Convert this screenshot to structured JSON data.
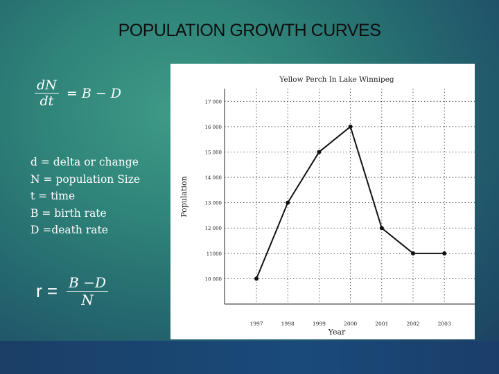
{
  "slide": {
    "title": "POPULATION GROWTH CURVES",
    "equation": {
      "numerator": "dN",
      "denominator": "dt",
      "rhs": "= B − D"
    },
    "definitions": [
      "d = delta or change",
      "N = population Size",
      "t = time",
      "B = birth rate",
      "D =death rate"
    ],
    "rate_formula": {
      "lhs": "r =",
      "numerator": "B −D",
      "denominator": "N"
    }
  },
  "chart_data": {
    "type": "line",
    "title": "Yellow Perch In Lake Winnipeg",
    "xlabel": "Year",
    "ylabel": "Population",
    "categories": [
      "1997",
      "1998",
      "1999",
      "2000",
      "2001",
      "2002",
      "2003"
    ],
    "values": [
      10000,
      13000,
      15000,
      16000,
      12000,
      11000,
      11000
    ],
    "y_ticks": [
      10000,
      11000,
      12000,
      13000,
      14000,
      15000,
      16000,
      17000
    ],
    "y_tick_labels": [
      "10 000",
      "11000",
      "12 000",
      "13 000",
      "14 000",
      "15 000",
      "16 000",
      "17 000"
    ],
    "ylim": [
      9000,
      17500
    ],
    "grid": true,
    "colors": {
      "line": "#111111",
      "grid": "#333333"
    }
  }
}
